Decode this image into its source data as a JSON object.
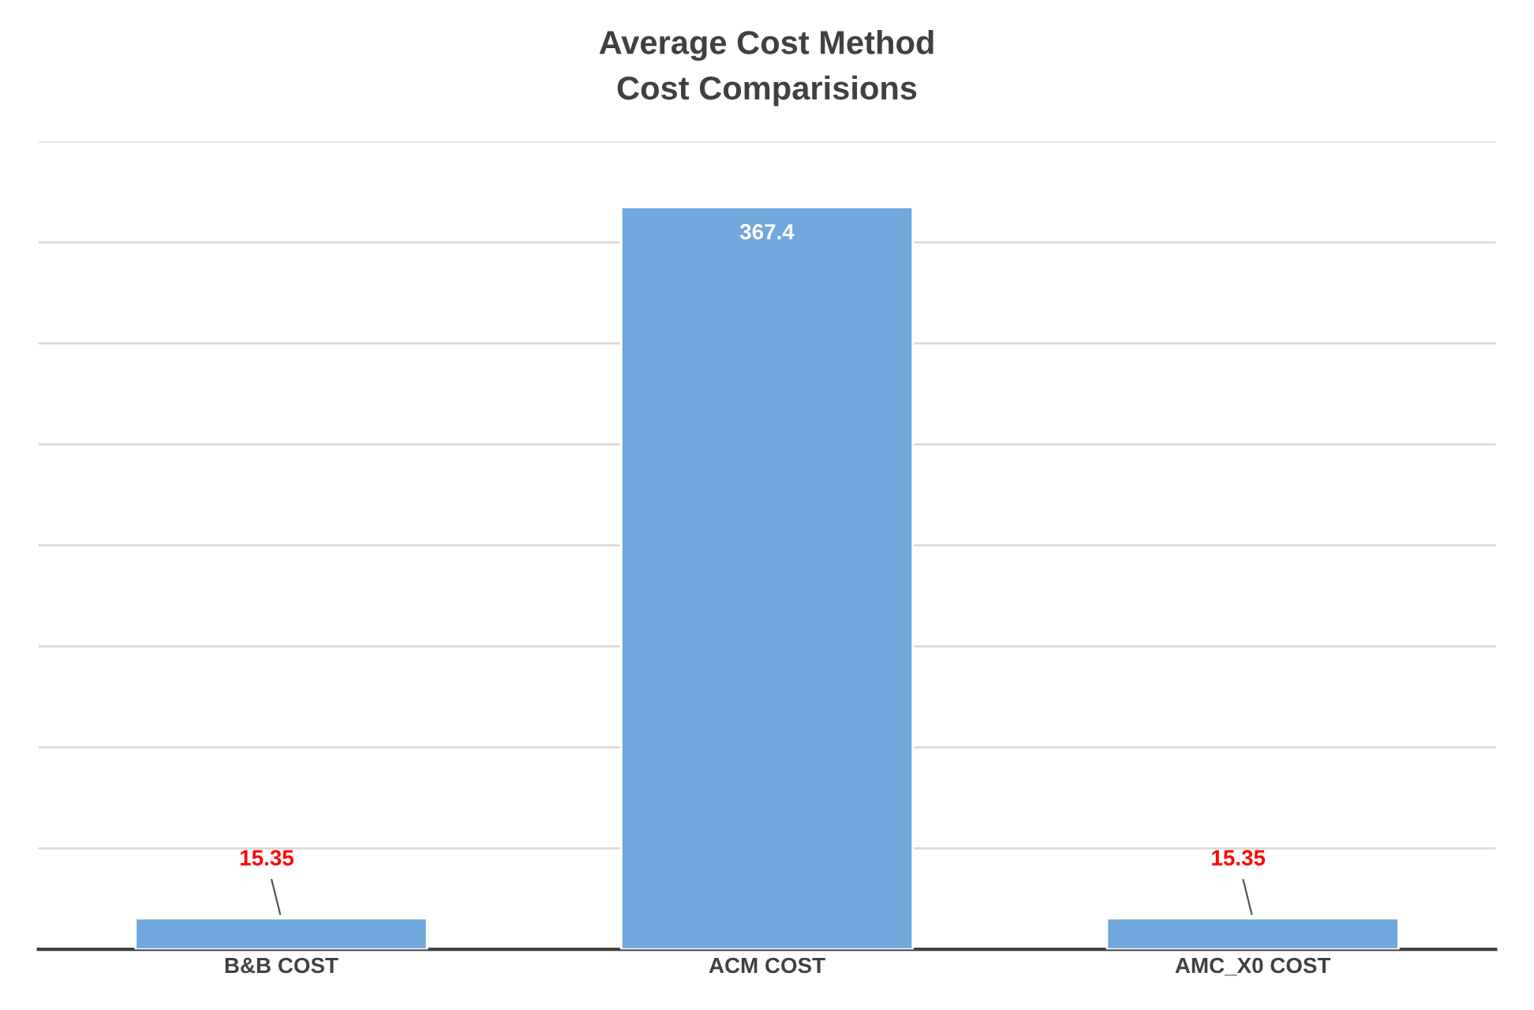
{
  "chart_data": {
    "type": "bar",
    "title": "Average Cost Method",
    "subtitle": "Cost Comparisions",
    "categories": [
      "B&B COST",
      "ACM COST",
      "AMC_X0 COST"
    ],
    "values": [
      15.35,
      367.4,
      15.35
    ],
    "color": "#70a7dc",
    "data_labels": true,
    "ylim": [
      0,
      400
    ],
    "yticks": [
      {
        "value": 0,
        "label": null
      },
      {
        "value": 50,
        "label": null
      },
      {
        "value": 100,
        "label": null
      },
      {
        "value": 150,
        "label": null
      },
      {
        "value": 200,
        "label": null
      },
      {
        "value": 250,
        "label": null
      },
      {
        "value": 300,
        "label": null
      },
      {
        "value": 350,
        "label": null
      },
      {
        "value": 400,
        "label": null
      }
    ],
    "grid": "y",
    "tick_labels": "x"
  }
}
